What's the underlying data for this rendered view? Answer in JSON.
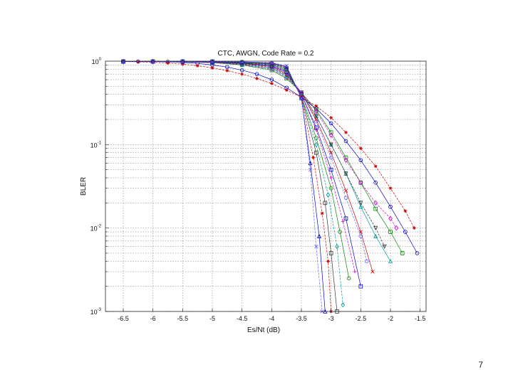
{
  "slide": {
    "page_number": "7"
  },
  "chart_data": {
    "type": "line",
    "title": "CTC, AWGN, Code Rate = 0.2",
    "xlabel": "Es/Nt (dB)",
    "ylabel": "BLER",
    "xlim": [
      -6.8,
      -1.4
    ],
    "ylim": [
      0.001,
      1
    ],
    "yscale": "log",
    "grid": true,
    "legend": "none",
    "x_ticks": [
      "-6.5",
      "-6",
      "-5.5",
      "-5",
      "-4.5",
      "-4",
      "-3.5",
      "-3",
      "-2.5",
      "-2",
      "-1.5"
    ],
    "y_ticks": [
      {
        "base": "10",
        "exp": "0",
        "value": 1
      },
      {
        "base": "10",
        "exp": "-1",
        "value": 0.1
      },
      {
        "base": "10",
        "exp": "-2",
        "value": 0.01
      },
      {
        "base": "10",
        "exp": "-3",
        "value": 0.001
      }
    ],
    "palette": [
      "#0000cc",
      "#cc00cc",
      "#009999",
      "#008800",
      "#cc0000",
      "#333333",
      "#6666ff"
    ],
    "markers": [
      "o",
      "x",
      "+",
      "*",
      "s",
      "d",
      "^",
      "v"
    ],
    "crossover": {
      "x": -3.45,
      "y": 0.36
    },
    "series": [
      {
        "end_x": -1.55,
        "end_y": 0.005,
        "color": "#0000cc",
        "marker": "o",
        "x": [
          -6.5,
          -6.25,
          -6,
          -5.75,
          -5.5,
          -5.25,
          -5,
          -4.75,
          -4.5,
          -4.25,
          -4,
          -3.75,
          -3.5,
          -3.25,
          -3,
          -2.75,
          -2.5,
          -2.25,
          -2,
          -1.75,
          -1.55
        ],
        "y": [
          0.99,
          0.99,
          0.99,
          0.98,
          0.97,
          0.94,
          0.9,
          0.85,
          0.78,
          0.7,
          0.6,
          0.48,
          0.37,
          0.27,
          0.18,
          0.11,
          0.065,
          0.035,
          0.018,
          0.009,
          0.005
        ]
      },
      {
        "end_x": -1.6,
        "end_y": 0.01,
        "color": "#cc0000",
        "marker": "*",
        "x": [
          -6.5,
          -6.25,
          -6,
          -5.75,
          -5.5,
          -5.25,
          -5,
          -4.75,
          -4.5,
          -4.25,
          -4,
          -3.75,
          -3.5,
          -3.25,
          -3,
          -2.75,
          -2.5,
          -2.25,
          -2,
          -1.75,
          -1.6
        ],
        "y": [
          0.99,
          0.98,
          0.97,
          0.95,
          0.92,
          0.88,
          0.83,
          0.77,
          0.7,
          0.62,
          0.54,
          0.45,
          0.37,
          0.29,
          0.21,
          0.14,
          0.09,
          0.055,
          0.03,
          0.016,
          0.01
        ]
      },
      {
        "end_x": -1.8,
        "end_y": 0.005,
        "color": "#008800",
        "marker": "s",
        "x": [
          -6.5,
          -6,
          -5.5,
          -5,
          -4.5,
          -4,
          -3.75,
          -3.5,
          -3.25,
          -3,
          -2.75,
          -2.5,
          -2.25,
          -2,
          -1.8
        ],
        "y": [
          0.99,
          0.99,
          0.98,
          0.96,
          0.9,
          0.78,
          0.62,
          0.42,
          0.26,
          0.14,
          0.07,
          0.035,
          0.017,
          0.009,
          0.005
        ]
      },
      {
        "end_x": -1.9,
        "end_y": 0.01,
        "color": "#cc00cc",
        "marker": "d",
        "x": [
          -6.5,
          -6,
          -5.5,
          -5,
          -4.5,
          -4,
          -3.75,
          -3.5,
          -3.25,
          -3,
          -2.75,
          -2.5,
          -2.25,
          -2,
          -1.9
        ],
        "y": [
          0.99,
          0.99,
          0.98,
          0.96,
          0.91,
          0.8,
          0.64,
          0.42,
          0.25,
          0.13,
          0.065,
          0.035,
          0.02,
          0.013,
          0.01
        ]
      },
      {
        "end_x": -2.0,
        "end_y": 0.004,
        "color": "#009999",
        "marker": "^",
        "x": [
          -6.5,
          -6,
          -5.5,
          -5,
          -4.5,
          -4,
          -3.75,
          -3.5,
          -3.25,
          -3,
          -2.75,
          -2.5,
          -2.25,
          -2.0
        ],
        "y": [
          0.99,
          0.99,
          0.99,
          0.97,
          0.92,
          0.82,
          0.66,
          0.42,
          0.22,
          0.1,
          0.045,
          0.018,
          0.008,
          0.004
        ]
      },
      {
        "end_x": -2.1,
        "end_y": 0.006,
        "color": "#333333",
        "marker": "v",
        "x": [
          -6.5,
          -6,
          -5.5,
          -5,
          -4.5,
          -4,
          -3.75,
          -3.5,
          -3.25,
          -3,
          -2.75,
          -2.5,
          -2.25,
          -2.1
        ],
        "y": [
          0.99,
          0.99,
          0.99,
          0.97,
          0.93,
          0.84,
          0.68,
          0.42,
          0.22,
          0.1,
          0.045,
          0.02,
          0.01,
          0.006
        ]
      },
      {
        "end_x": -2.3,
        "end_y": 0.003,
        "color": "#cc0000",
        "marker": "x",
        "x": [
          -6.5,
          -6,
          -5.5,
          -5,
          -4.5,
          -4,
          -3.75,
          -3.5,
          -3.25,
          -3,
          -2.75,
          -2.5,
          -2.3
        ],
        "y": [
          0.99,
          0.99,
          0.99,
          0.98,
          0.94,
          0.86,
          0.7,
          0.42,
          0.2,
          0.08,
          0.028,
          0.009,
          0.003
        ]
      },
      {
        "end_x": -2.4,
        "end_y": 0.004,
        "color": "#6666ff",
        "marker": "o",
        "x": [
          -6.5,
          -6,
          -5.5,
          -5,
          -4.5,
          -4,
          -3.75,
          -3.5,
          -3.25,
          -3,
          -2.75,
          -2.5,
          -2.4
        ],
        "y": [
          0.99,
          0.99,
          0.99,
          0.98,
          0.95,
          0.87,
          0.72,
          0.42,
          0.19,
          0.07,
          0.023,
          0.008,
          0.004
        ]
      },
      {
        "end_x": -2.5,
        "end_y": 0.002,
        "color": "#0000cc",
        "marker": "s",
        "x": [
          -6.5,
          -6,
          -5.5,
          -5,
          -4.5,
          -4,
          -3.75,
          -3.5,
          -3.25,
          -3,
          -2.75,
          -2.5
        ],
        "y": [
          0.99,
          0.99,
          0.99,
          0.98,
          0.95,
          0.88,
          0.74,
          0.4,
          0.16,
          0.05,
          0.013,
          0.002
        ]
      },
      {
        "end_x": -2.6,
        "end_y": 0.003,
        "color": "#cc00cc",
        "marker": "+",
        "x": [
          -6.5,
          -6,
          -5.5,
          -5,
          -4.5,
          -4,
          -3.75,
          -3.5,
          -3.25,
          -3,
          -2.8,
          -2.6
        ],
        "y": [
          0.99,
          0.99,
          0.99,
          0.98,
          0.96,
          0.9,
          0.76,
          0.4,
          0.15,
          0.04,
          0.012,
          0.003
        ]
      },
      {
        "end_x": -2.7,
        "end_y": 0.0025,
        "color": "#008800",
        "marker": "o",
        "x": [
          -6.5,
          -6,
          -5.5,
          -5,
          -4.5,
          -4,
          -3.75,
          -3.5,
          -3.25,
          -3,
          -2.85,
          -2.7
        ],
        "y": [
          0.99,
          0.99,
          0.99,
          0.99,
          0.96,
          0.91,
          0.78,
          0.38,
          0.12,
          0.03,
          0.009,
          0.0025
        ]
      },
      {
        "end_x": -2.8,
        "end_y": 0.0012,
        "color": "#009999",
        "marker": "d",
        "x": [
          -6.5,
          -6,
          -5.5,
          -5,
          -4.5,
          -4,
          -3.75,
          -3.5,
          -3.25,
          -3.05,
          -2.9,
          -2.8
        ],
        "y": [
          0.99,
          0.99,
          0.99,
          0.99,
          0.97,
          0.92,
          0.8,
          0.38,
          0.1,
          0.025,
          0.006,
          0.0012
        ]
      },
      {
        "end_x": -2.9,
        "end_y": 0.001,
        "color": "#333333",
        "marker": "s",
        "x": [
          -6.5,
          -6,
          -5.5,
          -5,
          -4.5,
          -4,
          -3.75,
          -3.5,
          -3.25,
          -3.1,
          -3.0,
          -2.9
        ],
        "y": [
          0.99,
          0.99,
          0.99,
          0.99,
          0.97,
          0.93,
          0.82,
          0.37,
          0.08,
          0.02,
          0.005,
          0.001
        ]
      },
      {
        "end_x": -3.0,
        "end_y": 0.001,
        "color": "#cc0000",
        "marker": "*",
        "x": [
          -6.5,
          -6,
          -5.5,
          -5,
          -4.5,
          -4,
          -3.75,
          -3.5,
          -3.3,
          -3.15,
          -3.05,
          -3.0
        ],
        "y": [
          0.99,
          0.99,
          0.99,
          0.99,
          0.98,
          0.94,
          0.84,
          0.37,
          0.07,
          0.015,
          0.004,
          0.001
        ]
      },
      {
        "end_x": -3.1,
        "end_y": 0.001,
        "color": "#0000cc",
        "marker": "^",
        "x": [
          -6.5,
          -6,
          -5.5,
          -5,
          -4.5,
          -4,
          -3.75,
          -3.5,
          -3.35,
          -3.2,
          -3.1
        ],
        "y": [
          0.99,
          0.99,
          0.99,
          0.99,
          0.98,
          0.95,
          0.86,
          0.36,
          0.06,
          0.008,
          0.001
        ]
      },
      {
        "end_x": -3.15,
        "end_y": 0.001,
        "color": "#6666ff",
        "marker": "x",
        "x": [
          -6.5,
          -6,
          -5.5,
          -5,
          -4.5,
          -4,
          -3.75,
          -3.5,
          -3.35,
          -3.25,
          -3.15
        ],
        "y": [
          0.99,
          0.99,
          0.99,
          0.99,
          0.98,
          0.96,
          0.88,
          0.36,
          0.05,
          0.006,
          0.001
        ]
      }
    ]
  }
}
